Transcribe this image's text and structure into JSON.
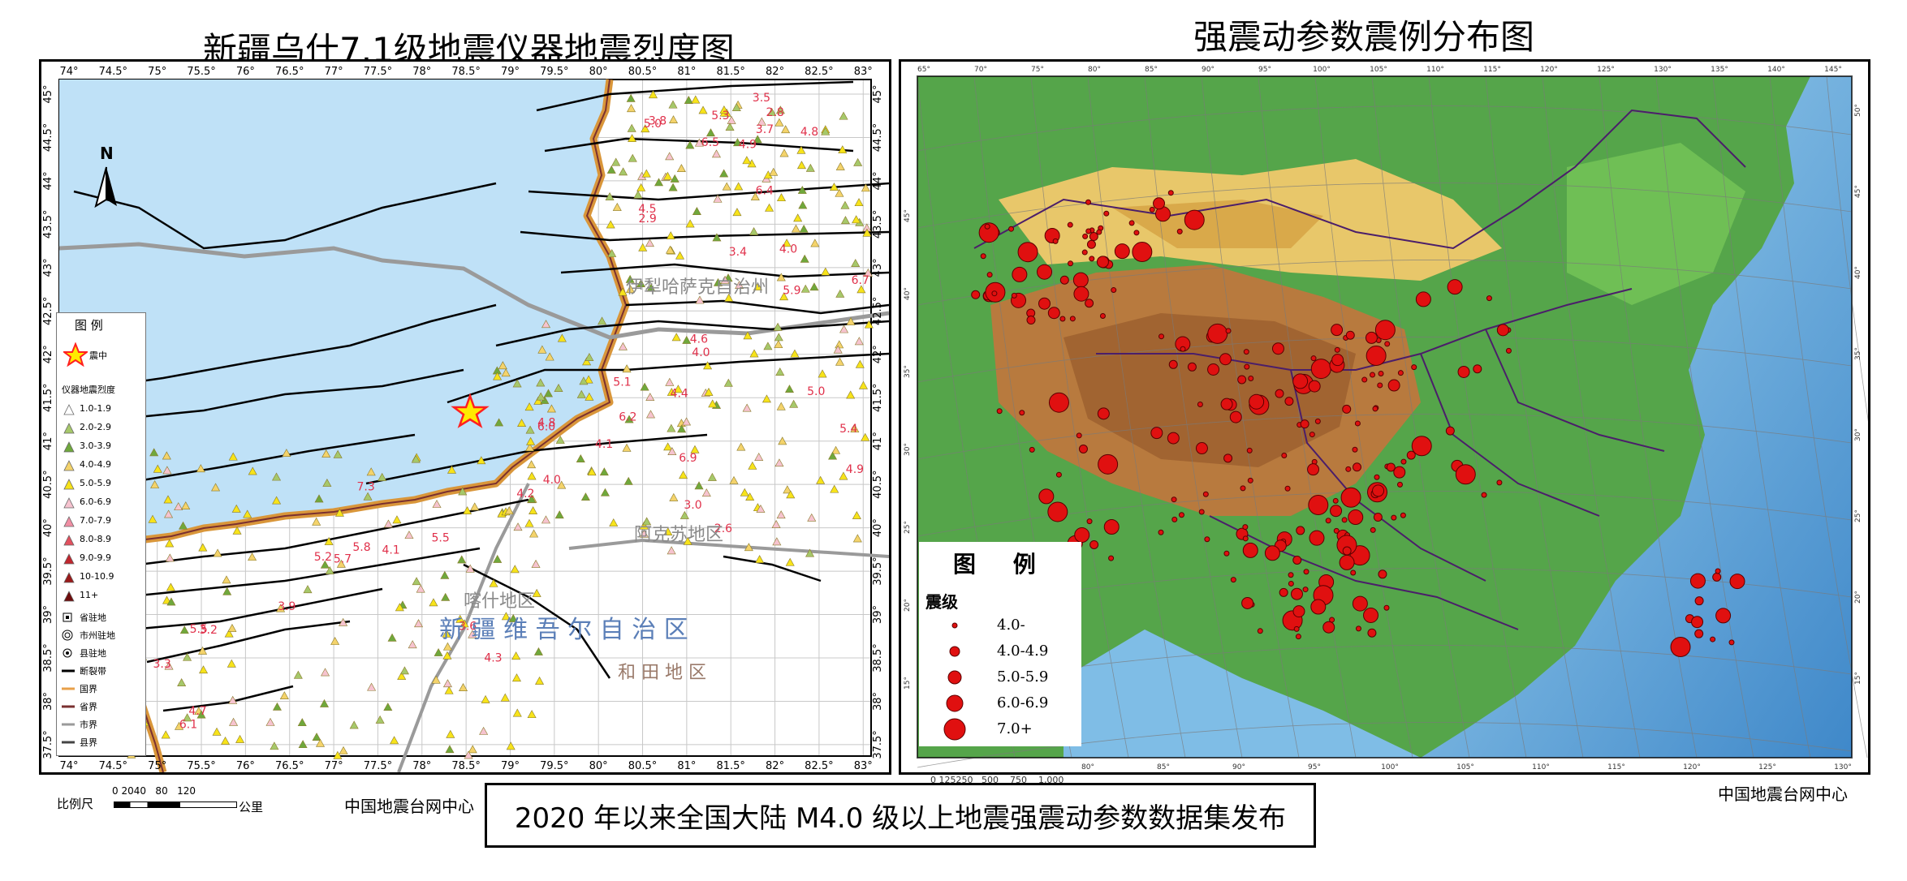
{
  "left_map": {
    "title": "新疆乌什7.1级地震仪器地震烈度图",
    "top_ticks": [
      "74°",
      "74.5°",
      "75°",
      "75.5°",
      "76°",
      "76.5°",
      "77°",
      "77.5°",
      "78°",
      "78.5°",
      "79°",
      "79.5°",
      "80°",
      "80.5°",
      "81°",
      "81.5°",
      "82°",
      "82.5°",
      "83°"
    ],
    "bottom_ticks": [
      "74°",
      "74.5°",
      "75°",
      "75.5°",
      "76°",
      "76.5°",
      "77°",
      "77.5°",
      "78°",
      "78.5°",
      "79°",
      "79.5°",
      "80°",
      "80.5°",
      "81°",
      "81.5°",
      "82°",
      "82.5°",
      "83°"
    ],
    "left_ticks": [
      "45°",
      "44.5°",
      "44°",
      "43.5°",
      "43°",
      "42.5°",
      "42°",
      "41.5°",
      "41°",
      "40.5°",
      "40°",
      "39.5°",
      "39°",
      "38.5°",
      "38°",
      "37.5°"
    ],
    "right_ticks": [
      "45°",
      "44.5°",
      "44°",
      "43.5°",
      "43°",
      "42.5°",
      "42°",
      "41.5°",
      "41°",
      "40.5°",
      "40°",
      "39.5°",
      "39°",
      "38.5°",
      "38°",
      "37.5°"
    ],
    "north_label": "N",
    "region_labels": [
      "伊犁哈萨克自治州",
      "阿克苏地区",
      "喀什地区",
      "新 疆 维 吾 尔 自 治 区",
      "和 田 地 区"
    ],
    "station_values": [
      "5.0",
      "4.8",
      "4.3",
      "4.8",
      "4.9",
      "5.2",
      "5.3",
      "4.1",
      "7.3",
      "6.5",
      "6.2",
      "5.8",
      "6.7",
      "6.9",
      "5.5",
      "6.4",
      "6.0",
      "5.7",
      "4.9",
      "4.4",
      "4.7",
      "4.5",
      "5.4",
      "4.2",
      "4.0",
      "5.0",
      "3.9",
      "3.7",
      "4.0",
      "4.1",
      "3.8",
      "5.1",
      "6.1",
      "5.9",
      "4.6",
      "5.5",
      "3.5",
      "3.0",
      "3.3",
      "2.9",
      "2.6",
      "3.2",
      "2.8",
      "4.0",
      "3.6",
      "3.4"
    ],
    "legend": {
      "title": "图 例",
      "epicenter": "震中",
      "intensity_title": "仪器地震烈度",
      "intensity_items": [
        {
          "label": "1.0-1.9",
          "color": "#ffffff"
        },
        {
          "label": "2.0-2.9",
          "color": "#a6c86a"
        },
        {
          "label": "3.0-3.9",
          "color": "#6fa83c"
        },
        {
          "label": "4.0-4.9",
          "color": "#f4d36b"
        },
        {
          "label": "5.0-5.9",
          "color": "#f7e31a"
        },
        {
          "label": "6.0-6.9",
          "color": "#f6c3cf"
        },
        {
          "label": "7.0-7.9",
          "color": "#f08ea3"
        },
        {
          "label": "8.0-8.9",
          "color": "#e2505e"
        },
        {
          "label": "9.0-9.9",
          "color": "#c0262e"
        },
        {
          "label": "10-10.9",
          "color": "#9a1a1a"
        },
        {
          "label": "11+",
          "color": "#6e0c0c"
        }
      ],
      "symbols": [
        {
          "label": "省驻地",
          "icon": "square-dot-icon"
        },
        {
          "label": "市州驻地",
          "icon": "double-circle-icon"
        },
        {
          "label": "县驻地",
          "icon": "dot-circle-icon"
        },
        {
          "label": "断裂带",
          "color": "#000000"
        },
        {
          "label": "国界",
          "color": "#e8a04a"
        },
        {
          "label": "省界",
          "color": "#7a3030"
        },
        {
          "label": "市界",
          "color": "#9a9a9a"
        },
        {
          "label": "县界",
          "color": "#444444"
        }
      ]
    },
    "scale": {
      "label": "比例尺",
      "numbers": "0 2040   80   120",
      "unit": "公里"
    },
    "credit": "中国地震台网中心"
  },
  "right_map": {
    "title": "强震动参数震例分布图",
    "top_ticks": [
      "65°",
      "70°",
      "75°",
      "80°",
      "85°",
      "90°",
      "95°",
      "100°",
      "105°",
      "110°",
      "115°",
      "120°",
      "125°",
      "130°",
      "135°",
      "140°",
      "145°"
    ],
    "bottom_ticks": [
      "80°",
      "85°",
      "90°",
      "95°",
      "100°",
      "105°",
      "110°",
      "115°",
      "120°",
      "125°",
      "130°"
    ],
    "left_ticks": [
      "45°",
      "40°",
      "35°",
      "30°",
      "25°",
      "20°",
      "15°"
    ],
    "right_ticks": [
      "50°",
      "45°",
      "40°",
      "35°",
      "30°",
      "25°",
      "20°",
      "15°"
    ],
    "legend": {
      "title": "图 例",
      "subtitle": "震级",
      "items": [
        {
          "label": "4.0-"
        },
        {
          "label": "4.0-4.9"
        },
        {
          "label": "5.0-5.9"
        },
        {
          "label": "6.0-6.9"
        },
        {
          "label": "7.0+"
        }
      ]
    },
    "scale_text": "0 125250   500    750    1,000",
    "credit": "中国地震台网中心"
  },
  "banner": "2020 年以来全国大陆 M4.0 级以上地震强震动参数数据集发布",
  "colors": {
    "lake": "#bfe1f7",
    "epicenter": "#ff2020",
    "quake_dot": "#e01010",
    "border_orange": "#d9963a",
    "fault": "#000000"
  }
}
